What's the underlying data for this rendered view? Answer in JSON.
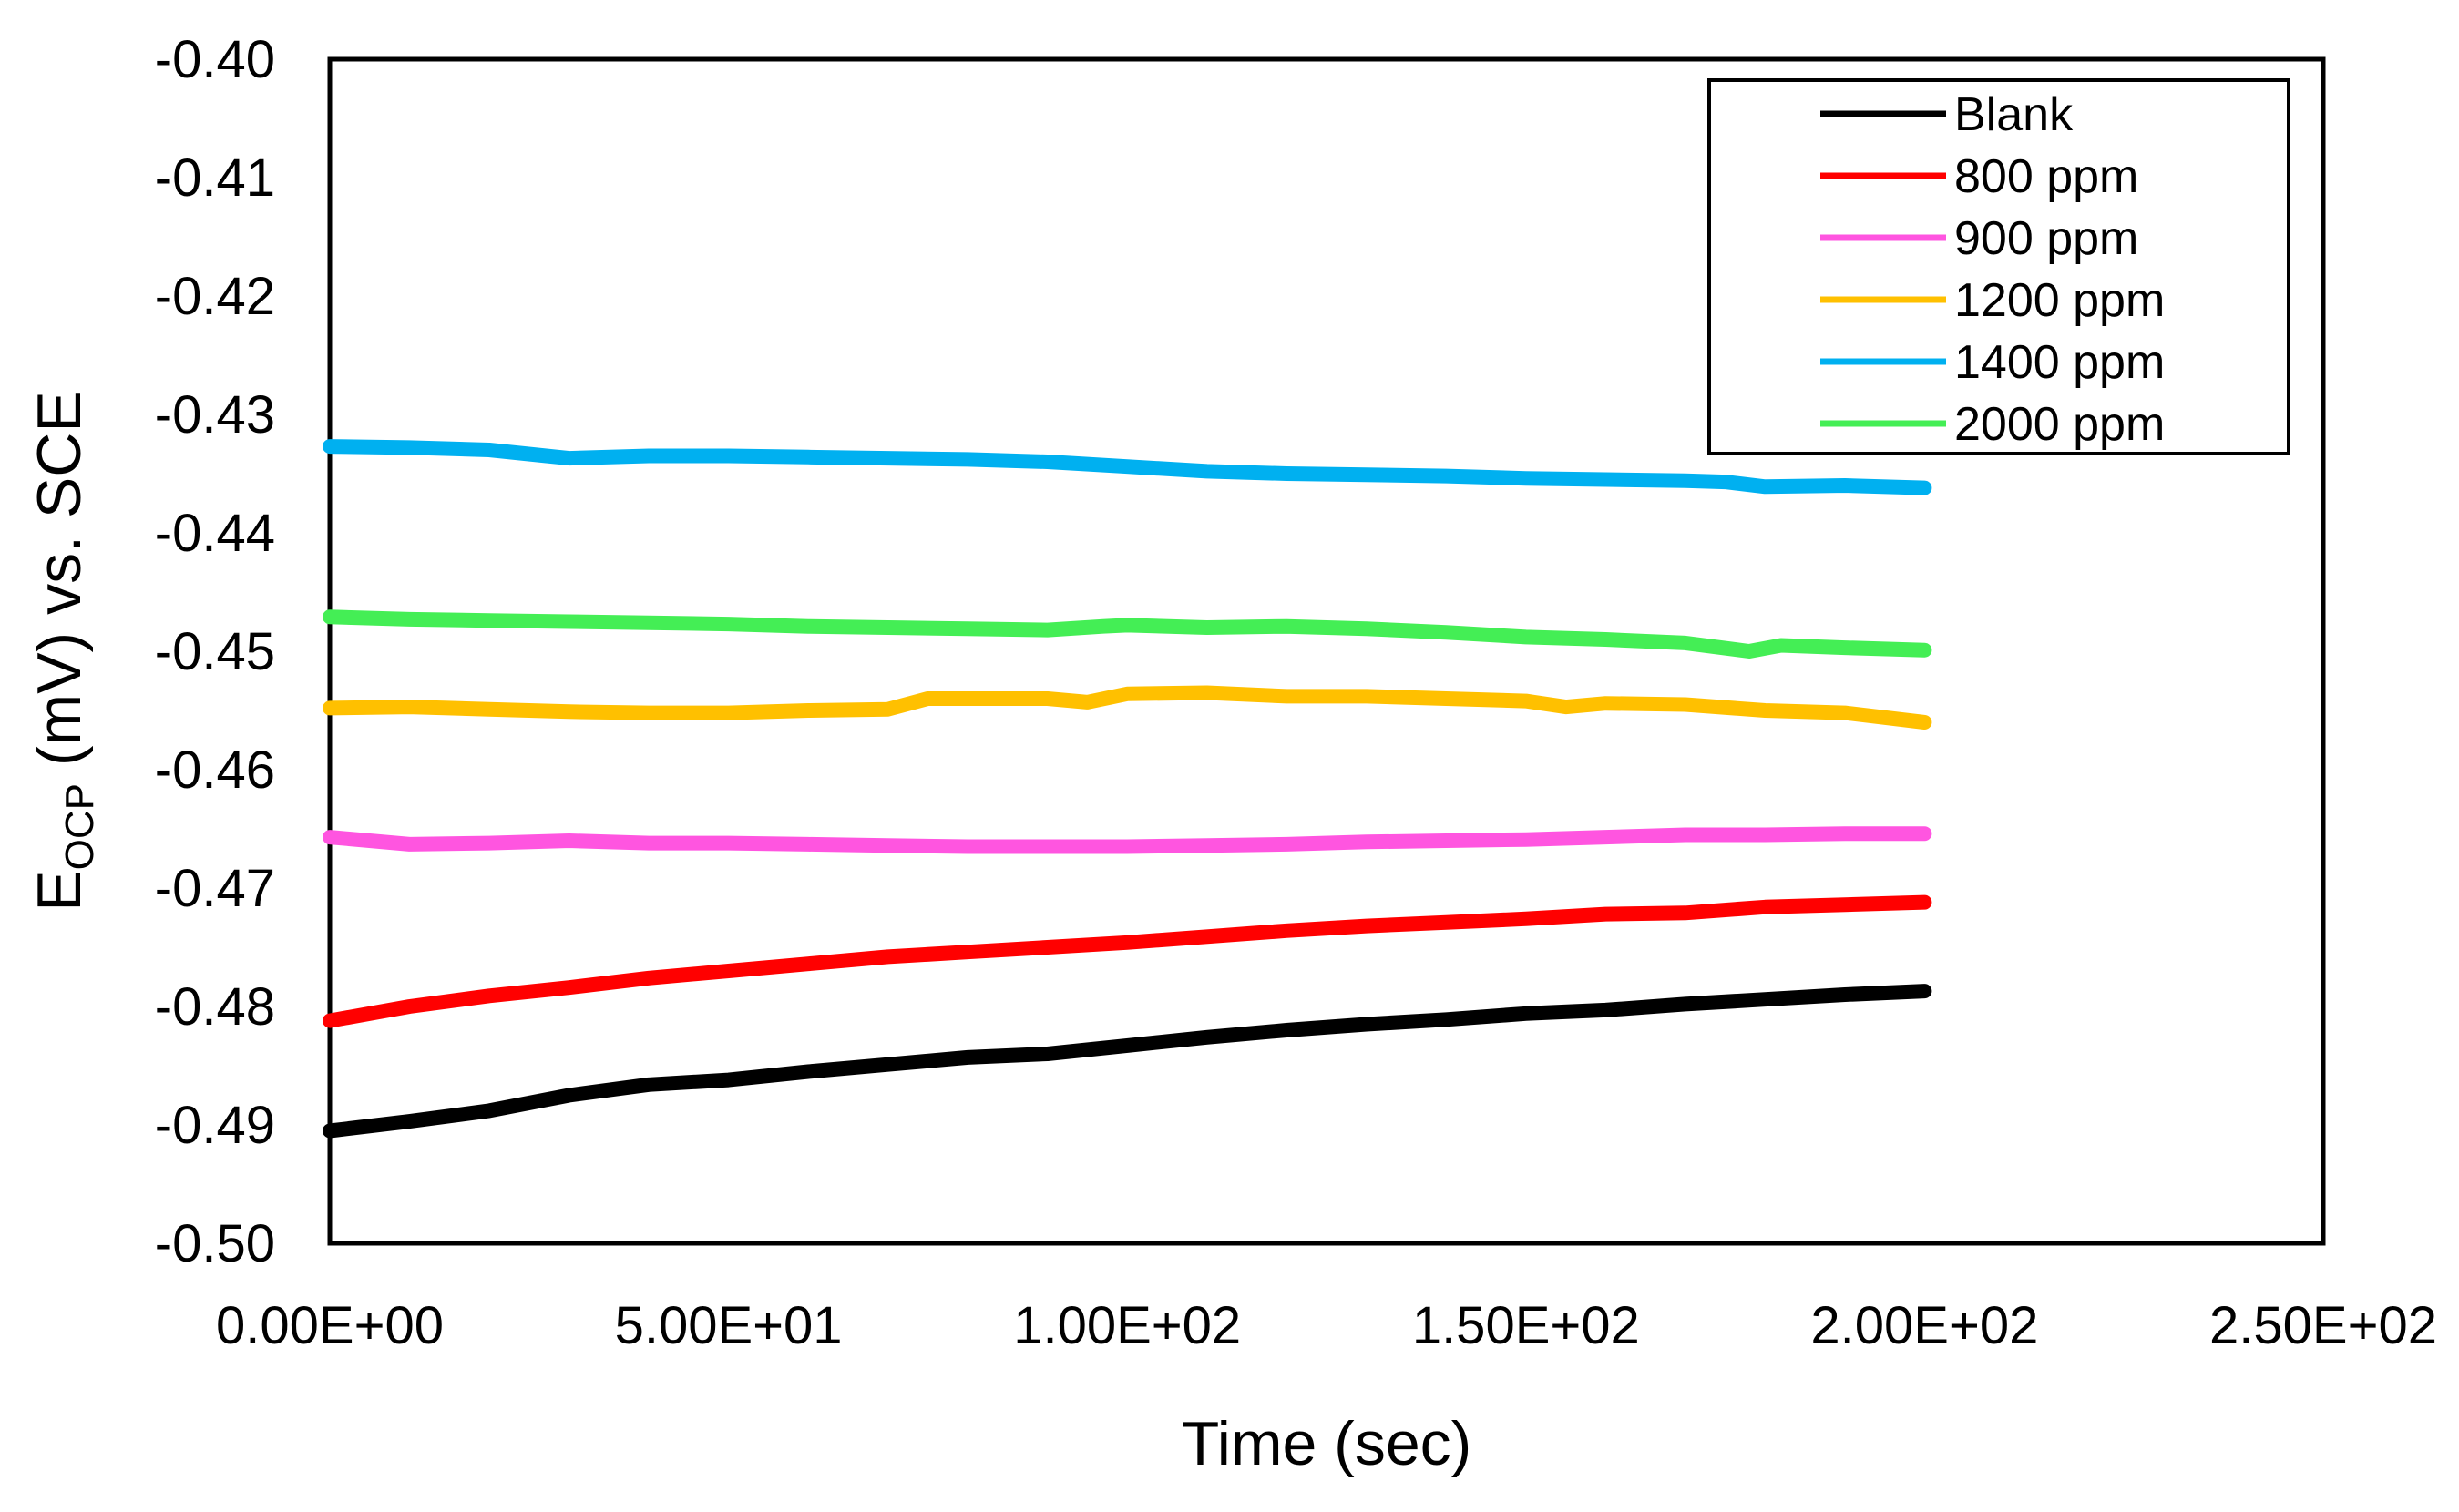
{
  "chart_data": {
    "type": "line",
    "title": "",
    "xlabel": "Time (sec)",
    "ylabel": {
      "main": "E",
      "subscript": "OCP",
      "rest": " (mV) vs. SCE"
    },
    "xlim": [
      0,
      250
    ],
    "ylim": [
      -0.5,
      -0.4
    ],
    "x_ticks": [
      0,
      50,
      100,
      150,
      200,
      250
    ],
    "x_tick_labels": [
      "0.00E+00",
      "5.00E+01",
      "1.00E+02",
      "1.50E+02",
      "2.00E+02",
      "2.50E+02"
    ],
    "y_ticks": [
      -0.4,
      -0.41,
      -0.42,
      -0.43,
      -0.44,
      -0.45,
      -0.46,
      -0.47,
      -0.48,
      -0.49,
      -0.5
    ],
    "y_tick_labels": [
      "-0.40",
      "-0.41",
      "-0.42",
      "-0.43",
      "-0.44",
      "-0.45",
      "-0.46",
      "-0.47",
      "-0.48",
      "-0.49",
      "-0.50"
    ],
    "grid": false,
    "legend_position": "top-right",
    "series": [
      {
        "name": "Blank",
        "color": "#000000",
        "points": [
          [
            0,
            -0.4905
          ],
          [
            10,
            -0.4897
          ],
          [
            20,
            -0.4888
          ],
          [
            30,
            -0.4875
          ],
          [
            40,
            -0.4866
          ],
          [
            50,
            -0.4862
          ],
          [
            60,
            -0.4855
          ],
          [
            70,
            -0.4849
          ],
          [
            80,
            -0.4843
          ],
          [
            90,
            -0.484
          ],
          [
            100,
            -0.4833
          ],
          [
            110,
            -0.4826
          ],
          [
            120,
            -0.482
          ],
          [
            130,
            -0.4815
          ],
          [
            140,
            -0.4811
          ],
          [
            150,
            -0.4806
          ],
          [
            160,
            -0.4803
          ],
          [
            170,
            -0.4798
          ],
          [
            180,
            -0.4794
          ],
          [
            190,
            -0.479
          ],
          [
            200,
            -0.4787
          ]
        ]
      },
      {
        "name": "800 ppm",
        "color": "#ff0000",
        "points": [
          [
            0,
            -0.4812
          ],
          [
            10,
            -0.48
          ],
          [
            20,
            -0.4791
          ],
          [
            30,
            -0.4784
          ],
          [
            40,
            -0.4776
          ],
          [
            50,
            -0.477
          ],
          [
            60,
            -0.4764
          ],
          [
            70,
            -0.4758
          ],
          [
            80,
            -0.4754
          ],
          [
            90,
            -0.475
          ],
          [
            100,
            -0.4746
          ],
          [
            110,
            -0.4741
          ],
          [
            120,
            -0.4736
          ],
          [
            130,
            -0.4732
          ],
          [
            140,
            -0.4729
          ],
          [
            150,
            -0.4726
          ],
          [
            160,
            -0.4722
          ],
          [
            170,
            -0.4721
          ],
          [
            180,
            -0.4716
          ],
          [
            190,
            -0.4714
          ],
          [
            200,
            -0.4712
          ]
        ]
      },
      {
        "name": "900 ppm",
        "color": "#ff55e0",
        "points": [
          [
            0,
            -0.4657
          ],
          [
            10,
            -0.4663
          ],
          [
            20,
            -0.4662
          ],
          [
            30,
            -0.466
          ],
          [
            40,
            -0.4662
          ],
          [
            50,
            -0.4662
          ],
          [
            60,
            -0.4663
          ],
          [
            70,
            -0.4664
          ],
          [
            80,
            -0.4665
          ],
          [
            90,
            -0.4665
          ],
          [
            100,
            -0.4665
          ],
          [
            110,
            -0.4664
          ],
          [
            120,
            -0.4663
          ],
          [
            130,
            -0.4661
          ],
          [
            140,
            -0.466
          ],
          [
            150,
            -0.4659
          ],
          [
            160,
            -0.4657
          ],
          [
            170,
            -0.4655
          ],
          [
            180,
            -0.4655
          ],
          [
            190,
            -0.4654
          ],
          [
            200,
            -0.4654
          ]
        ]
      },
      {
        "name": "1200 ppm",
        "color": "#ffc000",
        "points": [
          [
            0,
            -0.4548
          ],
          [
            10,
            -0.4547
          ],
          [
            20,
            -0.4549
          ],
          [
            30,
            -0.4551
          ],
          [
            40,
            -0.4552
          ],
          [
            50,
            -0.4552
          ],
          [
            60,
            -0.455
          ],
          [
            70,
            -0.4549
          ],
          [
            75,
            -0.454
          ],
          [
            90,
            -0.454
          ],
          [
            95,
            -0.4543
          ],
          [
            100,
            -0.4536
          ],
          [
            110,
            -0.4535
          ],
          [
            120,
            -0.4538
          ],
          [
            130,
            -0.4538
          ],
          [
            140,
            -0.454
          ],
          [
            150,
            -0.4542
          ],
          [
            155,
            -0.4547
          ],
          [
            160,
            -0.4544
          ],
          [
            170,
            -0.4545
          ],
          [
            180,
            -0.455
          ],
          [
            190,
            -0.4552
          ],
          [
            200,
            -0.456
          ]
        ]
      },
      {
        "name": "1400 ppm",
        "color": "#00b0f0",
        "points": [
          [
            0,
            -0.4327
          ],
          [
            10,
            -0.4328
          ],
          [
            20,
            -0.433
          ],
          [
            30,
            -0.4337
          ],
          [
            40,
            -0.4335
          ],
          [
            50,
            -0.4335
          ],
          [
            60,
            -0.4336
          ],
          [
            70,
            -0.4337
          ],
          [
            80,
            -0.4338
          ],
          [
            90,
            -0.434
          ],
          [
            100,
            -0.4344
          ],
          [
            110,
            -0.4348
          ],
          [
            120,
            -0.435
          ],
          [
            130,
            -0.4351
          ],
          [
            140,
            -0.4352
          ],
          [
            150,
            -0.4354
          ],
          [
            160,
            -0.4355
          ],
          [
            170,
            -0.4356
          ],
          [
            175,
            -0.4357
          ],
          [
            180,
            -0.4361
          ],
          [
            190,
            -0.436
          ],
          [
            200,
            -0.4362
          ]
        ]
      },
      {
        "name": "2000 ppm",
        "color": "#44ee55",
        "points": [
          [
            0,
            -0.4471
          ],
          [
            10,
            -0.4473
          ],
          [
            20,
            -0.4474
          ],
          [
            30,
            -0.4475
          ],
          [
            40,
            -0.4476
          ],
          [
            50,
            -0.4477
          ],
          [
            60,
            -0.4479
          ],
          [
            70,
            -0.448
          ],
          [
            80,
            -0.4481
          ],
          [
            90,
            -0.4482
          ],
          [
            97,
            -0.4479
          ],
          [
            100,
            -0.4478
          ],
          [
            110,
            -0.448
          ],
          [
            120,
            -0.4479
          ],
          [
            130,
            -0.4481
          ],
          [
            140,
            -0.4484
          ],
          [
            150,
            -0.4488
          ],
          [
            160,
            -0.449
          ],
          [
            170,
            -0.4493
          ],
          [
            178,
            -0.45
          ],
          [
            182,
            -0.4495
          ],
          [
            190,
            -0.4497
          ],
          [
            200,
            -0.4499
          ]
        ]
      }
    ]
  }
}
